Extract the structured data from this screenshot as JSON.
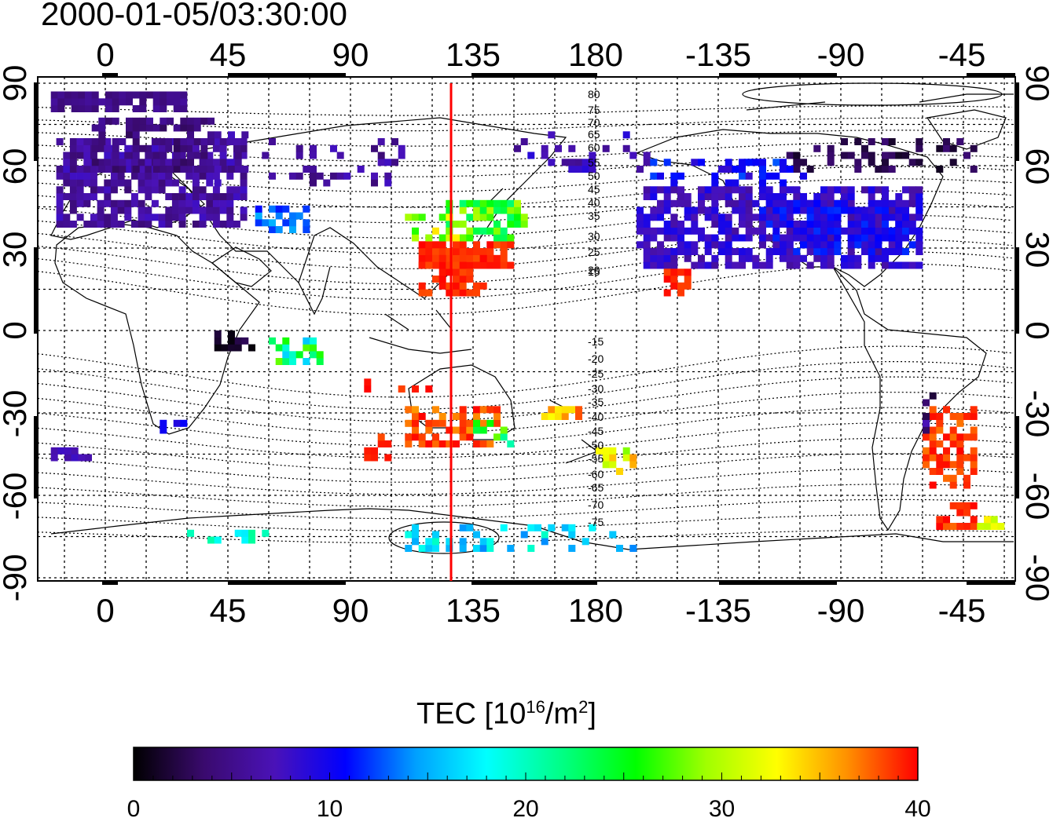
{
  "title": "2000-01-05/03:30:00",
  "map": {
    "x_ticks_top": [
      "0",
      "45",
      "90",
      "135",
      "180",
      "-135",
      "-90",
      "-45"
    ],
    "x_ticks_bottom": [
      "0",
      "45",
      "90",
      "135",
      "180",
      "-135",
      "-90",
      "-45"
    ],
    "y_ticks_left": [
      "90",
      "60",
      "30",
      "0",
      "-30",
      "-60",
      "-90"
    ],
    "y_ticks_right": [
      "90",
      "60",
      "30",
      "0",
      "-30",
      "-60",
      "-90"
    ],
    "contour_labels_north": [
      "80",
      "75",
      "70",
      "65",
      "60",
      "55",
      "50",
      "45",
      "40",
      "35",
      "30",
      "25",
      "20",
      "15"
    ],
    "contour_labels_south": [
      "-15",
      "-20",
      "-25",
      "-30",
      "-35",
      "-40",
      "-45",
      "-50",
      "-55",
      "-60",
      "-65",
      "-70",
      "-75"
    ],
    "meridian_marker_longitude": 126,
    "meridian_marker_color": "#ff0000"
  },
  "colorbar": {
    "label_main": "TEC  [10",
    "label_exp": "16",
    "label_unit": "/m",
    "label_unit_exp": "2",
    "label_close": "]",
    "ticks": [
      "0",
      "10",
      "20",
      "30",
      "40"
    ],
    "range": [
      0,
      40
    ],
    "stops": [
      "#000000",
      "#3a0a6e",
      "#4a12b8",
      "#0000ff",
      "#00a0ff",
      "#00ffff",
      "#00ff80",
      "#00ff00",
      "#a0ff00",
      "#ffff00",
      "#ff9000",
      "#ff0000"
    ]
  }
}
